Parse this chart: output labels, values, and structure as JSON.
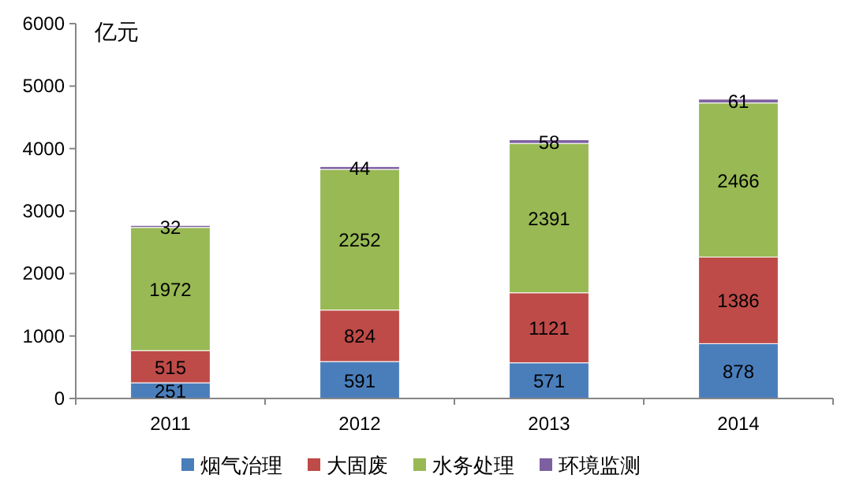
{
  "chart_data": {
    "type": "bar",
    "stacked": true,
    "ylabel": "亿元",
    "categories": [
      "2011",
      "2012",
      "2013",
      "2014"
    ],
    "series": [
      {
        "name": "烟气治理",
        "color": "#4a7ebb",
        "values": [
          251,
          591,
          571,
          878
        ]
      },
      {
        "name": "大固废",
        "color": "#be4b48",
        "values": [
          515,
          824,
          1121,
          1386
        ]
      },
      {
        "name": "水务处理",
        "color": "#98b954",
        "values": [
          1972,
          2252,
          2391,
          2466
        ]
      },
      {
        "name": "环境监测",
        "color": "#7d60a0",
        "values": [
          32,
          44,
          58,
          61
        ]
      }
    ],
    "ylim": [
      0,
      6000
    ],
    "yticks": [
      0,
      1000,
      2000,
      3000,
      4000,
      5000,
      6000
    ],
    "data_labels": true,
    "legend": "bottom",
    "grid": false
  }
}
